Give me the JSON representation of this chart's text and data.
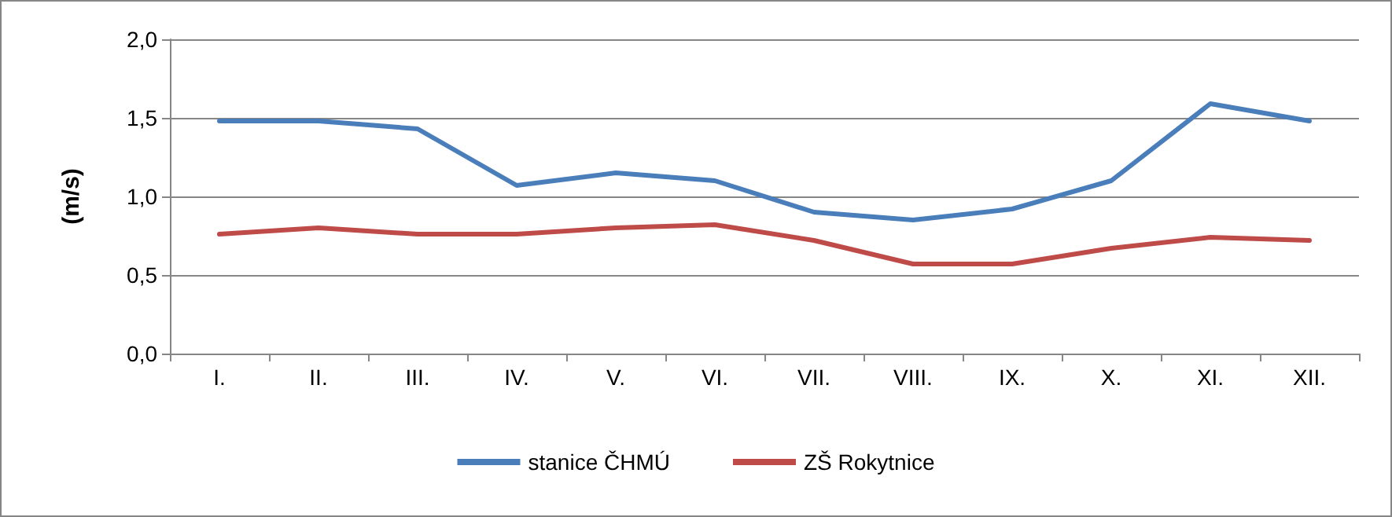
{
  "chart_data": {
    "type": "line",
    "ylabel": "(m/s)",
    "categories": [
      "I.",
      "II.",
      "III.",
      "IV.",
      "V.",
      "VI.",
      "VII.",
      "VIII.",
      "IX.",
      "X.",
      "XI.",
      "XII."
    ],
    "series": [
      {
        "name": "stanice ČHMÚ",
        "color": "#4a7ebb",
        "values": [
          1.48,
          1.48,
          1.43,
          1.07,
          1.15,
          1.1,
          0.9,
          0.85,
          0.92,
          1.1,
          1.59,
          1.48
        ]
      },
      {
        "name": "ZŠ Rokytnice",
        "color": "#be4b48",
        "values": [
          0.76,
          0.8,
          0.76,
          0.76,
          0.8,
          0.82,
          0.72,
          0.57,
          0.57,
          0.67,
          0.74,
          0.72
        ]
      }
    ],
    "ylim": [
      0,
      2
    ],
    "yticks": [
      {
        "value": 0,
        "label": "0,0"
      },
      {
        "value": 0.5,
        "label": "0,5"
      },
      {
        "value": 1,
        "label": "1,0"
      },
      {
        "value": 1.5,
        "label": "1,5"
      },
      {
        "value": 2,
        "label": "2,0"
      }
    ],
    "grid": "y",
    "legend": "bottom",
    "marker": "none",
    "line_style": "solid"
  }
}
